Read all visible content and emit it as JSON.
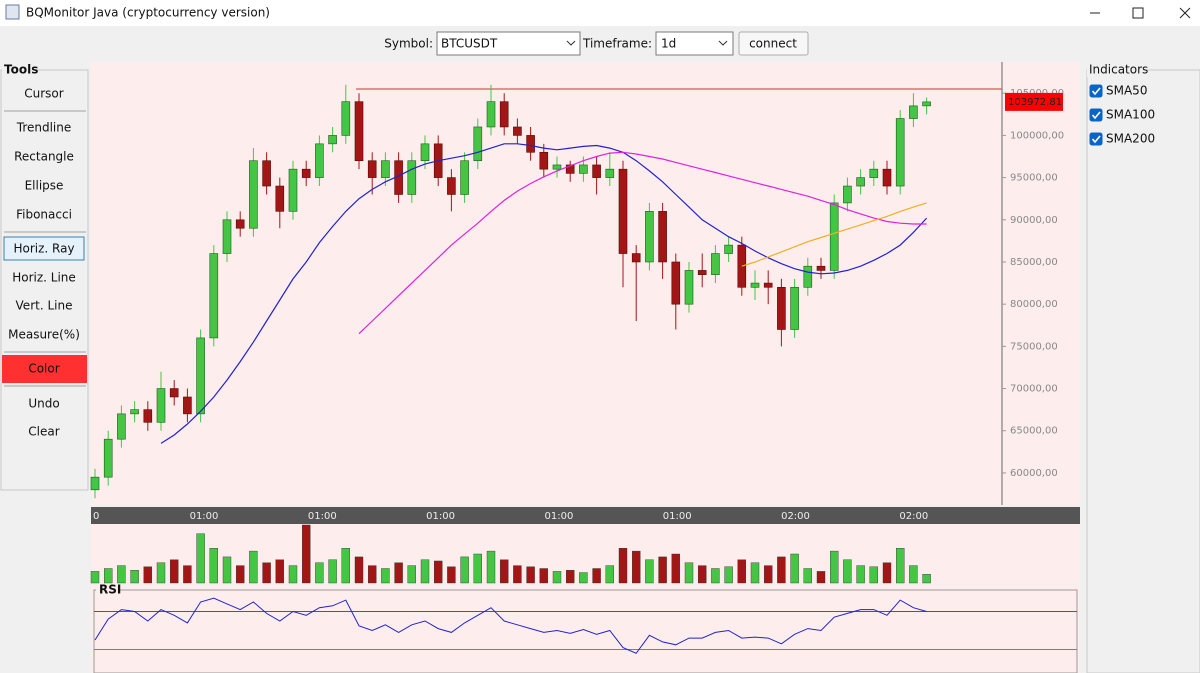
{
  "window": {
    "title": "BQMonitor Java (cryptocurrency version)"
  },
  "toolbar": {
    "symbol_label": "Symbol:",
    "symbol": "BTCUSDT",
    "timeframe_label": "Timeframe:",
    "timeframe": "1d",
    "connect": "connect"
  },
  "tools": {
    "title": "Tools",
    "items": [
      "Cursor",
      "Trendline",
      "Rectangle",
      "Ellipse",
      "Fibonacci",
      "Horiz. Ray",
      "Horiz. Line",
      "Vert. Line",
      "Measure(%)",
      "Color",
      "Undo",
      "Clear"
    ]
  },
  "indicators": {
    "title": "Indicators"
  },
  "chart_data": {
    "type": "candlestick",
    "ylim": [
      56200,
      108700
    ],
    "yticks": [
      {
        "value": 60000,
        "label": "60000,00"
      },
      {
        "value": 65000,
        "label": "65000,00"
      },
      {
        "value": 70000,
        "label": "70000,00"
      },
      {
        "value": 75000,
        "label": "75000,00"
      },
      {
        "value": 80000,
        "label": "80000,00"
      },
      {
        "value": 85000,
        "label": "85000,00"
      },
      {
        "value": 90000,
        "label": "90000,00"
      },
      {
        "value": 95000,
        "label": "95000,00"
      },
      {
        "value": 100000,
        "label": "100000,00"
      },
      {
        "value": 105000,
        "label": "105000,00"
      }
    ],
    "x_labels": [
      "0",
      "01:00",
      "01:00",
      "01:00",
      "01:00",
      "01:00",
      "02:00",
      "02:00"
    ],
    "up_color": "#44c544",
    "down_color": "#a31616",
    "ray": 105500,
    "ray_color": "#d03030",
    "last_price": {
      "value": 103972.81,
      "label": "103972,81"
    },
    "open": [
      58000,
      59500,
      64000,
      67000,
      67500,
      66000,
      70000,
      69000,
      67000,
      76000,
      86000,
      90000,
      89000,
      97000,
      94000,
      91000,
      96000,
      95000,
      99000,
      100000,
      104000,
      97000,
      95000,
      97000,
      93000,
      97000,
      99000,
      95000,
      93000,
      97000,
      101000,
      104000,
      101000,
      100000,
      98000,
      96000,
      96500,
      95500,
      96500,
      95000,
      96000,
      86000,
      85000,
      91000,
      85000,
      80000,
      84000,
      83500,
      86000,
      87000,
      82000,
      82500,
      82000,
      77000,
      82000,
      84500,
      84000,
      92000,
      94000,
      95000,
      96000,
      94000,
      102000,
      103500
    ],
    "high": [
      60500,
      65000,
      68000,
      68500,
      68500,
      72000,
      71000,
      70000,
      77000,
      87000,
      91000,
      91000,
      98500,
      98000,
      95000,
      97000,
      97000,
      100000,
      101000,
      106000,
      105000,
      98000,
      98000,
      98000,
      98000,
      100000,
      100000,
      96000,
      98000,
      102000,
      106000,
      105000,
      102000,
      101000,
      99000,
      97500,
      97000,
      97500,
      97500,
      98000,
      97000,
      87000,
      92000,
      92000,
      86000,
      85000,
      86000,
      87000,
      88000,
      88000,
      84000,
      84000,
      83000,
      83000,
      85500,
      85500,
      93000,
      95000,
      96000,
      97000,
      97000,
      103000,
      105000,
      104500
    ],
    "low": [
      57000,
      58500,
      63000,
      66000,
      65000,
      65000,
      68000,
      66000,
      66000,
      75000,
      85000,
      88000,
      88000,
      93000,
      89000,
      90000,
      94000,
      94000,
      98000,
      99000,
      96000,
      93000,
      94000,
      92000,
      92000,
      96000,
      94000,
      91000,
      92000,
      96000,
      100000,
      100000,
      99000,
      97000,
      95000,
      95000,
      94500,
      94500,
      93000,
      94000,
      82000,
      78000,
      84000,
      83000,
      77000,
      79000,
      82000,
      82500,
      85000,
      81000,
      80500,
      80000,
      75000,
      76000,
      81000,
      83000,
      83000,
      91000,
      93000,
      94000,
      93000,
      93000,
      101000,
      102500
    ],
    "close": [
      59500,
      64000,
      67000,
      67500,
      66000,
      70000,
      69000,
      67000,
      76000,
      86000,
      90000,
      89000,
      97000,
      94000,
      91000,
      96000,
      95000,
      99000,
      100000,
      104000,
      97000,
      95000,
      97000,
      93000,
      97000,
      99000,
      95000,
      93000,
      97000,
      101000,
      104000,
      101000,
      100000,
      98000,
      96000,
      96500,
      95500,
      96500,
      95000,
      96000,
      86000,
      85000,
      91000,
      85000,
      80000,
      84000,
      83500,
      86000,
      87000,
      82000,
      82500,
      82000,
      77000,
      82000,
      84500,
      84000,
      92000,
      94000,
      95000,
      96000,
      94000,
      102000,
      103500,
      103972.81
    ],
    "sma": [
      {
        "name": "SMA50",
        "color": "#2222cc",
        "visible": true,
        "values": [
          null,
          null,
          null,
          null,
          null,
          63500,
          64500,
          65800,
          67300,
          69000,
          71000,
          73200,
          75500,
          78000,
          80500,
          83000,
          85000,
          87300,
          89200,
          91000,
          92500,
          93600,
          94500,
          95200,
          96000,
          96600,
          97000,
          97300,
          97600,
          98000,
          98500,
          99000,
          99000,
          98800,
          98500,
          98300,
          98500,
          98700,
          98800,
          98500,
          98000,
          97000,
          95800,
          94500,
          93000,
          91500,
          90000,
          89000,
          88000,
          87200,
          86300,
          85500,
          84800,
          84200,
          83800,
          83600,
          83700,
          84000,
          84500,
          85200,
          86000,
          87000,
          88500,
          90200
        ]
      },
      {
        "name": "SMA100",
        "color": "#e020e0",
        "visible": true,
        "values": [
          null,
          null,
          null,
          null,
          null,
          null,
          null,
          null,
          null,
          null,
          null,
          null,
          null,
          null,
          null,
          null,
          null,
          null,
          null,
          null,
          76500,
          78000,
          79500,
          81000,
          82500,
          84000,
          85500,
          87000,
          88300,
          89600,
          91000,
          92300,
          93400,
          94300,
          95100,
          95800,
          96400,
          97000,
          97500,
          97900,
          98000,
          97800,
          97500,
          97200,
          96800,
          96400,
          96000,
          95600,
          95200,
          94800,
          94400,
          94000,
          93600,
          93200,
          92800,
          92300,
          91800,
          91200,
          90700,
          90200,
          89800,
          89600,
          89500,
          89500
        ]
      },
      {
        "name": "SMA200",
        "color": "#f0b020",
        "visible": true,
        "values": [
          null,
          null,
          null,
          null,
          null,
          null,
          null,
          null,
          null,
          null,
          null,
          null,
          null,
          null,
          null,
          null,
          null,
          null,
          null,
          null,
          null,
          null,
          null,
          null,
          null,
          null,
          null,
          null,
          null,
          null,
          null,
          null,
          null,
          null,
          null,
          null,
          null,
          null,
          null,
          null,
          null,
          null,
          null,
          null,
          null,
          null,
          null,
          null,
          null,
          84500,
          85000,
          85600,
          86200,
          86800,
          87400,
          87900,
          88400,
          88900,
          89400,
          89900,
          90400,
          91000,
          91500,
          92000
        ]
      }
    ],
    "volume": [
      20,
      25,
      30,
      22,
      28,
      35,
      40,
      30,
      85,
      60,
      45,
      30,
      55,
      35,
      40,
      30,
      100,
      35,
      40,
      60,
      45,
      30,
      25,
      35,
      30,
      40,
      38,
      28,
      45,
      50,
      55,
      40,
      30,
      28,
      25,
      20,
      22,
      18,
      25,
      30,
      60,
      55,
      40,
      45,
      50,
      35,
      30,
      25,
      28,
      40,
      35,
      30,
      45,
      50,
      25,
      20,
      55,
      40,
      30,
      28,
      35,
      60,
      30,
      15
    ],
    "volume_ylim": [
      0,
      100
    ],
    "rsi_title": "RSI",
    "rsi": [
      40,
      62,
      72,
      70,
      60,
      72,
      66,
      58,
      80,
      84,
      78,
      72,
      80,
      68,
      60,
      70,
      66,
      74,
      76,
      82,
      55,
      50,
      56,
      48,
      56,
      60,
      52,
      48,
      58,
      66,
      74,
      60,
      56,
      52,
      48,
      50,
      47,
      51,
      46,
      50,
      32,
      26,
      45,
      38,
      35,
      42,
      42,
      48,
      50,
      42,
      43,
      42,
      36,
      46,
      52,
      50,
      64,
      68,
      72,
      72,
      66,
      82,
      74,
      70
    ],
    "rsi_ylim": [
      0,
      100
    ],
    "rsi_levels": [
      {
        "value": 70,
        "color": "#e02020"
      },
      {
        "value": 30,
        "color": "#20c020"
      }
    ]
  }
}
